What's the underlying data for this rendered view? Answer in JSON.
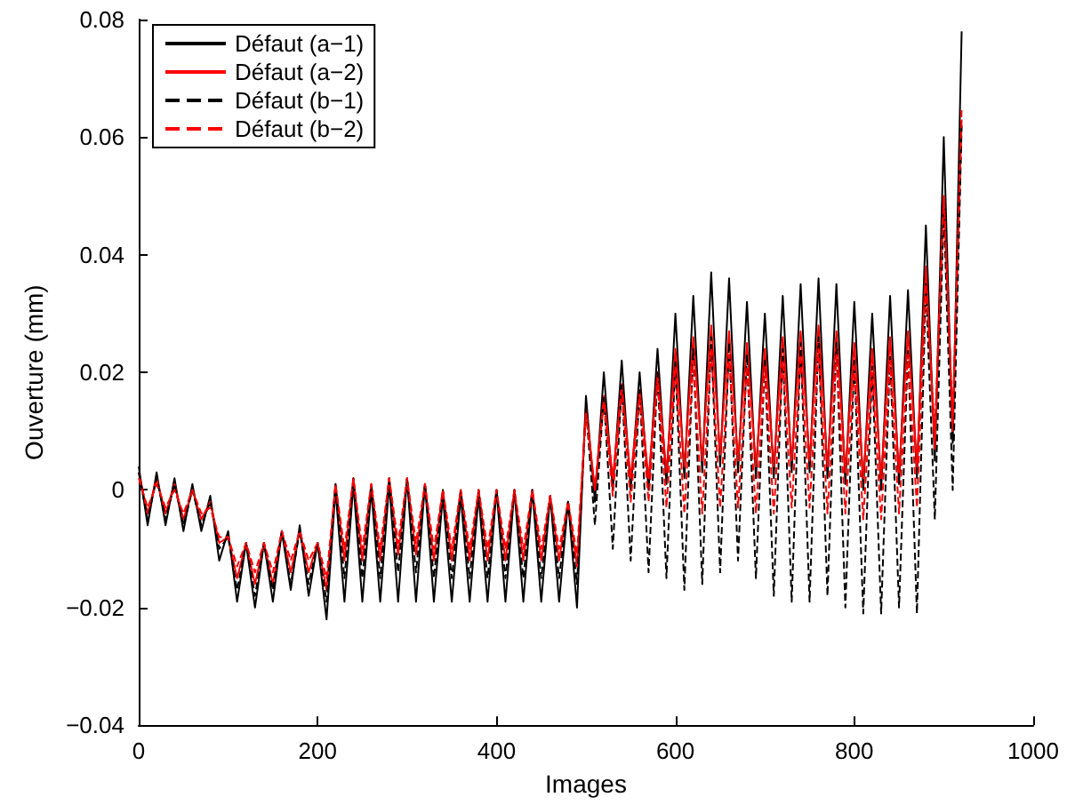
{
  "chart_data": {
    "type": "line",
    "xlabel": "Images",
    "ylabel": "Ouverture (mm)",
    "x": [
      0,
      10,
      20,
      30,
      40,
      50,
      60,
      70,
      80,
      90,
      100,
      110,
      120,
      130,
      140,
      150,
      160,
      170,
      180,
      190,
      200,
      210,
      220,
      230,
      240,
      250,
      260,
      270,
      280,
      290,
      300,
      310,
      320,
      330,
      340,
      350,
      360,
      370,
      380,
      390,
      400,
      410,
      420,
      430,
      440,
      450,
      460,
      470,
      480,
      490,
      500,
      510,
      520,
      530,
      540,
      550,
      560,
      570,
      580,
      590,
      600,
      610,
      620,
      630,
      640,
      650,
      660,
      670,
      680,
      690,
      700,
      710,
      720,
      730,
      740,
      750,
      760,
      770,
      780,
      790,
      800,
      810,
      820,
      830,
      840,
      850,
      860,
      870,
      880,
      890,
      900,
      910,
      920
    ],
    "series": [
      {
        "name": "Défaut (a−1)",
        "color": "#000000",
        "line_style": "solid",
        "values": [
          0.004,
          -0.006,
          0.003,
          -0.006,
          0.002,
          -0.007,
          0.001,
          -0.007,
          -0.001,
          -0.012,
          -0.007,
          -0.019,
          -0.009,
          -0.02,
          -0.009,
          -0.019,
          -0.007,
          -0.017,
          -0.006,
          -0.018,
          -0.009,
          -0.022,
          0.0,
          -0.019,
          0.001,
          -0.019,
          0.0,
          -0.019,
          0.001,
          -0.019,
          0.002,
          -0.019,
          0.001,
          -0.019,
          -0.001,
          -0.019,
          -0.001,
          -0.019,
          -0.001,
          -0.019,
          0.0,
          -0.019,
          0.0,
          -0.019,
          0.0,
          -0.019,
          -0.001,
          -0.019,
          -0.002,
          -0.02,
          0.016,
          -0.002,
          0.02,
          0.0,
          0.022,
          0.0,
          0.02,
          0.0,
          0.024,
          0.001,
          0.03,
          0.002,
          0.033,
          0.003,
          0.037,
          0.004,
          0.036,
          0.003,
          0.032,
          0.002,
          0.03,
          0.002,
          0.033,
          0.003,
          0.035,
          0.003,
          0.036,
          0.002,
          0.035,
          0.001,
          0.032,
          0.0,
          0.03,
          0.0,
          0.033,
          0.001,
          0.034,
          0.002,
          0.045,
          0.005,
          0.06,
          0.008,
          0.078
        ]
      },
      {
        "name": "Défaut (a−2)",
        "color": "#ff0000",
        "line_style": "solid",
        "values": [
          0.003,
          -0.004,
          0.002,
          -0.004,
          0.001,
          -0.005,
          0.0,
          -0.005,
          -0.002,
          -0.009,
          -0.008,
          -0.015,
          -0.009,
          -0.016,
          -0.009,
          -0.016,
          -0.007,
          -0.014,
          -0.007,
          -0.014,
          -0.009,
          -0.017,
          0.001,
          -0.012,
          0.002,
          -0.012,
          0.001,
          -0.012,
          0.002,
          -0.011,
          0.002,
          -0.011,
          0.001,
          -0.012,
          0.0,
          -0.012,
          0.0,
          -0.012,
          0.0,
          -0.012,
          0.0,
          -0.012,
          0.0,
          -0.012,
          0.0,
          -0.012,
          -0.001,
          -0.012,
          -0.002,
          -0.013,
          0.014,
          0.0,
          0.016,
          0.002,
          0.018,
          0.002,
          0.017,
          0.002,
          0.02,
          0.003,
          0.024,
          0.004,
          0.026,
          0.005,
          0.028,
          0.006,
          0.027,
          0.005,
          0.025,
          0.004,
          0.024,
          0.004,
          0.026,
          0.005,
          0.027,
          0.005,
          0.028,
          0.004,
          0.027,
          0.003,
          0.025,
          0.002,
          0.024,
          0.002,
          0.026,
          0.003,
          0.027,
          0.004,
          0.038,
          0.007,
          0.05,
          0.01,
          0.063
        ]
      },
      {
        "name": "Défaut (b−1)",
        "color": "#000000",
        "line_style": "dashed",
        "values": [
          0.003,
          -0.005,
          0.002,
          -0.005,
          0.001,
          -0.006,
          0.0,
          -0.006,
          -0.002,
          -0.01,
          -0.008,
          -0.017,
          -0.009,
          -0.018,
          -0.009,
          -0.017,
          -0.007,
          -0.016,
          -0.007,
          -0.016,
          -0.009,
          -0.019,
          0.001,
          -0.015,
          0.002,
          -0.015,
          0.001,
          -0.015,
          0.002,
          -0.014,
          0.002,
          -0.014,
          0.001,
          -0.015,
          0.0,
          -0.015,
          0.0,
          -0.015,
          0.0,
          -0.015,
          0.0,
          -0.015,
          0.0,
          -0.015,
          0.0,
          -0.015,
          -0.001,
          -0.015,
          -0.002,
          -0.016,
          0.014,
          -0.006,
          0.016,
          -0.01,
          0.018,
          -0.012,
          0.017,
          -0.014,
          0.02,
          -0.015,
          0.022,
          -0.017,
          0.024,
          -0.016,
          0.026,
          -0.014,
          0.025,
          -0.012,
          0.023,
          -0.015,
          0.022,
          -0.018,
          0.024,
          -0.019,
          0.025,
          -0.019,
          0.026,
          -0.018,
          0.025,
          -0.02,
          0.022,
          -0.021,
          0.021,
          -0.021,
          0.023,
          -0.02,
          0.024,
          -0.021,
          0.035,
          -0.005,
          0.048,
          0.0,
          0.062
        ]
      },
      {
        "name": "Défaut (b−2)",
        "color": "#ff0000",
        "line_style": "dashed",
        "values": [
          0.002,
          -0.003,
          0.001,
          -0.003,
          0.0,
          -0.004,
          0.0,
          -0.004,
          -0.003,
          -0.008,
          -0.008,
          -0.013,
          -0.009,
          -0.014,
          -0.009,
          -0.014,
          -0.007,
          -0.012,
          -0.007,
          -0.012,
          -0.009,
          -0.015,
          0.001,
          -0.01,
          0.002,
          -0.01,
          0.001,
          -0.01,
          0.002,
          -0.009,
          0.002,
          -0.009,
          0.001,
          -0.01,
          0.0,
          -0.01,
          0.0,
          -0.01,
          0.0,
          -0.01,
          0.0,
          -0.01,
          0.0,
          -0.01,
          0.0,
          -0.01,
          -0.001,
          -0.01,
          -0.002,
          -0.011,
          0.013,
          0.0,
          0.015,
          -0.001,
          0.017,
          -0.002,
          0.016,
          -0.002,
          0.019,
          -0.003,
          0.021,
          -0.004,
          0.022,
          -0.004,
          0.024,
          -0.003,
          0.023,
          -0.003,
          0.021,
          -0.004,
          0.021,
          -0.004,
          0.022,
          -0.003,
          0.023,
          -0.003,
          0.024,
          -0.004,
          0.023,
          -0.004,
          0.021,
          -0.005,
          0.02,
          -0.005,
          0.022,
          -0.004,
          0.023,
          -0.003,
          0.035,
          0.01,
          0.05,
          0.012,
          0.065
        ]
      }
    ],
    "xlim": [
      0,
      1000
    ],
    "xticks": [
      0,
      200,
      400,
      600,
      800,
      1000
    ],
    "ylim": [
      -0.04,
      0.08
    ],
    "yticks": [
      {
        "value": -0.04,
        "label": "−0.04"
      },
      {
        "value": -0.02,
        "label": "−0.02"
      },
      0,
      0.02,
      0.04,
      0.06,
      0.08
    ],
    "legend": "top left",
    "marker": "none",
    "grid": false
  }
}
